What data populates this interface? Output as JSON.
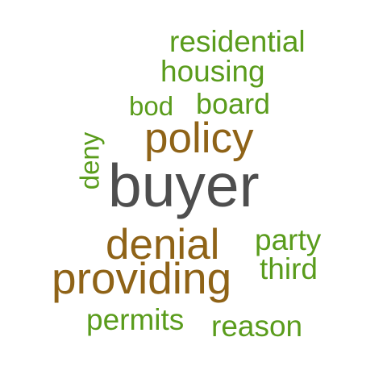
{
  "word_cloud": {
    "words": [
      {
        "text": "residential",
        "color": "#5a9c1c"
      },
      {
        "text": "housing",
        "color": "#5a9c1c"
      },
      {
        "text": "bod",
        "color": "#5a9c1c"
      },
      {
        "text": "board",
        "color": "#5a9c1c"
      },
      {
        "text": "policy",
        "color": "#8f6317"
      },
      {
        "text": "deny",
        "color": "#5a9c1c",
        "orientation": "vertical"
      },
      {
        "text": "buyer",
        "color": "#4e4e4e"
      },
      {
        "text": "denial",
        "color": "#8f6317"
      },
      {
        "text": "party",
        "color": "#5a9c1c"
      },
      {
        "text": "third",
        "color": "#5a9c1c"
      },
      {
        "text": "providing",
        "color": "#8f6317"
      },
      {
        "text": "permits",
        "color": "#5a9c1c"
      },
      {
        "text": "reason",
        "color": "#5a9c1c"
      }
    ]
  }
}
